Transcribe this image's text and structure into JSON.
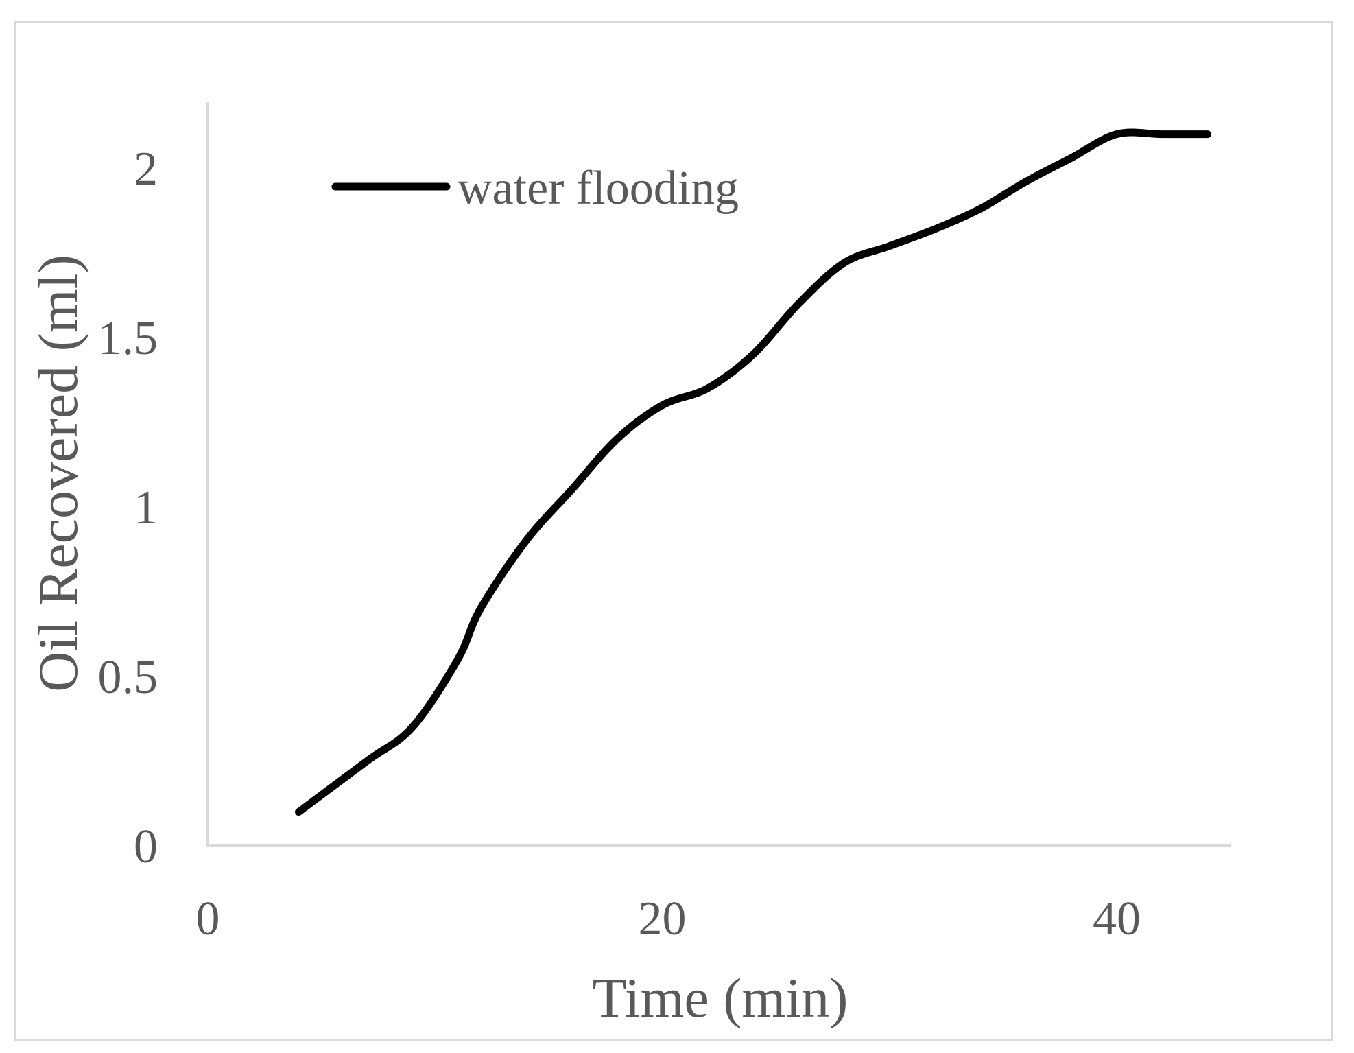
{
  "chart_data": {
    "type": "line",
    "title": "",
    "xlabel": "Time (min)",
    "ylabel": "Oil Recovered (ml)",
    "xlim": [
      0,
      45
    ],
    "ylim": [
      0,
      2.2
    ],
    "x_ticks": [
      0,
      20,
      40
    ],
    "x_tick_labels": [
      "0",
      "20",
      "40"
    ],
    "y_ticks": [
      0,
      0.5,
      1,
      1.5,
      2
    ],
    "y_tick_labels": [
      "0",
      "0.5",
      "1",
      "1.5",
      "2"
    ],
    "grid": false,
    "legend_position": "top-left",
    "series": [
      {
        "name": "water flooding",
        "color": "#000000",
        "x": [
          4,
          7,
          9,
          11,
          12,
          14,
          16,
          18,
          20,
          22,
          24,
          26,
          28,
          30,
          32,
          34,
          36,
          38,
          40,
          42,
          44
        ],
        "y": [
          0.1,
          0.25,
          0.35,
          0.55,
          0.7,
          0.9,
          1.05,
          1.2,
          1.3,
          1.35,
          1.45,
          1.6,
          1.72,
          1.77,
          1.82,
          1.88,
          1.96,
          2.03,
          2.1,
          2.1,
          2.1
        ]
      }
    ]
  },
  "colors": {
    "axis": "#d9d9d9",
    "text": "#595959",
    "line": "#000000"
  }
}
